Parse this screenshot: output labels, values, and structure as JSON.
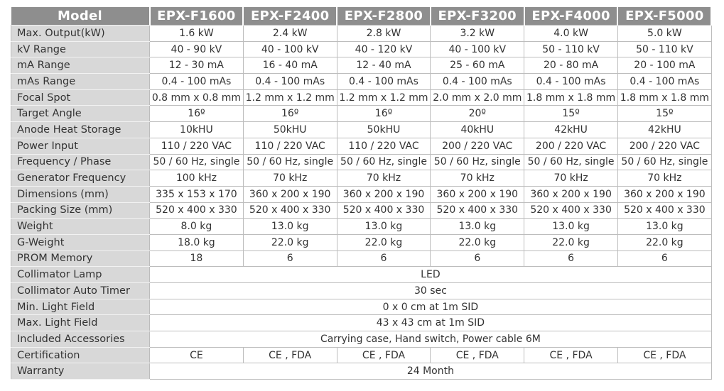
{
  "header": {
    "label": "Model",
    "models": [
      "EPX-F1600",
      "EPX-F2400",
      "EPX-F2800",
      "EPX-F3200",
      "EPX-F4000",
      "EPX-F5000"
    ]
  },
  "rows": [
    {
      "label": "Max. Output(kW)",
      "values": [
        "1.6 kW",
        "2.4 kW",
        "2.8 kW",
        "3.2 kW",
        "4.0 kW",
        "5.0 kW"
      ]
    },
    {
      "label": "kV Range",
      "values": [
        "40 - 90 kV",
        "40 - 100 kV",
        "40 - 120 kV",
        "40 - 100 kV",
        "50 - 110 kV",
        "50 - 110 kV"
      ]
    },
    {
      "label": "mA Range",
      "values": [
        "12 - 30 mA",
        "16 - 40 mA",
        "12 - 40 mA",
        "25 - 60 mA",
        "20 - 80 mA",
        "20 - 100 mA"
      ]
    },
    {
      "label": "mAs Range",
      "values": [
        "0.4 - 100 mAs",
        "0.4 - 100 mAs",
        "0.4 - 100 mAs",
        "0.4 - 100 mAs",
        "0.4 - 100 mAs",
        "0.4 - 100 mAs"
      ]
    },
    {
      "label": "Focal Spot",
      "values": [
        "0.8 mm x 0.8 mm",
        "1.2 mm x 1.2 mm",
        "1.2 mm x 1.2 mm",
        "2.0 mm x 2.0 mm",
        "1.8 mm x 1.8 mm",
        "1.8 mm x 1.8 mm"
      ]
    },
    {
      "label": "Target Angle",
      "values": [
        "16º",
        "16º",
        "16º",
        "20º",
        "15º",
        "15º"
      ]
    },
    {
      "label": "Anode Heat Storage",
      "values": [
        "10kHU",
        "50kHU",
        "50kHU",
        "40kHU",
        "42kHU",
        "42kHU"
      ]
    },
    {
      "label": "Power Input",
      "values": [
        "110 / 220 VAC",
        "110 / 220 VAC",
        "110 / 220 VAC",
        "200 / 220 VAC",
        "200 / 220 VAC",
        "200 / 220 VAC"
      ]
    },
    {
      "label": "Frequency / Phase",
      "values": [
        "50 / 60 Hz, single",
        "50 / 60 Hz, single",
        "50 / 60 Hz, single",
        "50 / 60 Hz, single",
        "50 / 60 Hz, single",
        "50 / 60 Hz, single"
      ]
    },
    {
      "label": "Generator Frequency",
      "values": [
        "100 kHz",
        "70 kHz",
        "70 kHz",
        "70 kHz",
        "70 kHz",
        "70 kHz"
      ]
    },
    {
      "label": "Dimensions (mm)",
      "values": [
        "335 x 153 x 170",
        "360 x 200 x 190",
        "360 x 200 x 190",
        "360 x 200 x 190",
        "360 x 200 x 190",
        "360 x 200 x 190"
      ]
    },
    {
      "label": "Packing Size (mm)",
      "values": [
        "520 x 400 x 330",
        "520 x 400 x 330",
        "520 x 400 x 330",
        "520 x 400 x 330",
        "520 x 400 x 330",
        "520 x 400 x 330"
      ]
    },
    {
      "label": "Weight",
      "values": [
        "8.0 kg",
        "13.0 kg",
        "13.0 kg",
        "13.0 kg",
        "13.0 kg",
        "13.0 kg"
      ]
    },
    {
      "label": "G-Weight",
      "values": [
        "18.0 kg",
        "22.0 kg",
        "22.0 kg",
        "22.0 kg",
        "22.0 kg",
        "22.0 kg"
      ]
    },
    {
      "label": "PROM Memory",
      "values": [
        "18",
        "6",
        "6",
        "6",
        "6",
        "6"
      ]
    },
    {
      "label": "Collimator Lamp",
      "values": [
        "LED"
      ]
    },
    {
      "label": "Collimator Auto Timer",
      "values": [
        "30 sec"
      ]
    },
    {
      "label": "Min. Light Field",
      "values": [
        "0 x 0 cm at 1m SID"
      ]
    },
    {
      "label": "Max. Light Field",
      "values": [
        "43  x 43 cm at 1m SID"
      ]
    },
    {
      "label": "Included Accessories",
      "values": [
        "Carrying case, Hand switch, Power cable 6M"
      ]
    },
    {
      "label": "Certification",
      "values": [
        "CE",
        "CE , FDA",
        "CE , FDA",
        "CE , FDA",
        "CE , FDA",
        "CE , FDA"
      ]
    },
    {
      "label": "Warranty",
      "values": [
        "24 Month"
      ]
    }
  ]
}
